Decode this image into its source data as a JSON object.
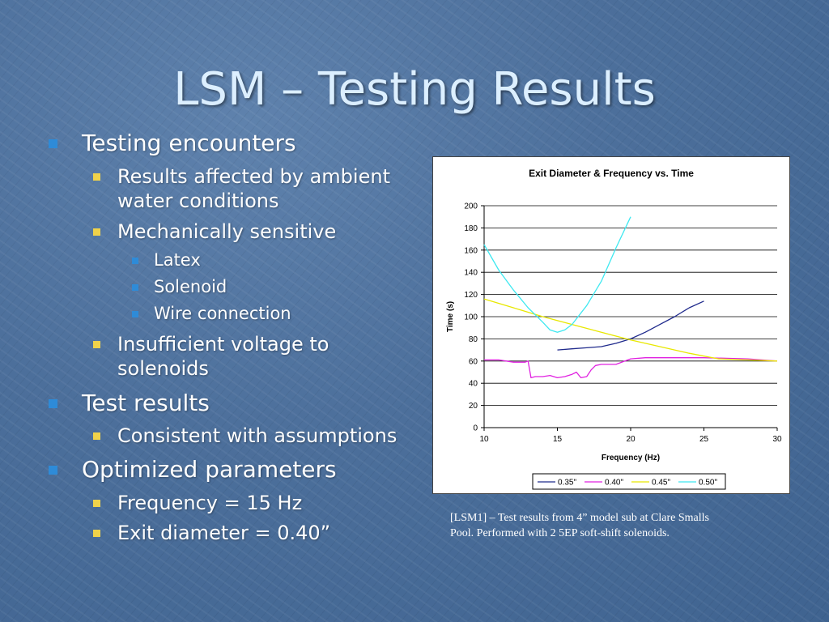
{
  "slide": {
    "title": "LSM – Testing Results",
    "bullets": [
      {
        "level": 1,
        "text": "Testing encounters"
      },
      {
        "level": 2,
        "text": "Results affected by ambient"
      },
      {
        "level": 2,
        "text": "water conditions",
        "continuation": true
      },
      {
        "level": 2,
        "text": "Mechanically sensitive"
      },
      {
        "level": 3,
        "text": "Latex"
      },
      {
        "level": 3,
        "text": "Solenoid"
      },
      {
        "level": 3,
        "text": "Wire connection"
      },
      {
        "level": 2,
        "text": "Insufficient voltage to"
      },
      {
        "level": 2,
        "text": "solenoids",
        "continuation": true
      },
      {
        "level": 1,
        "text": "Test results"
      },
      {
        "level": 2,
        "text": "Consistent with assumptions"
      },
      {
        "level": 1,
        "text": "Optimized parameters"
      },
      {
        "level": 2,
        "text": "Frequency = 15 Hz"
      },
      {
        "level": 2,
        "text": "Exit diameter = 0.40”"
      }
    ],
    "caption_line1": "[LSM1] – Test results from 4” model sub at Clare Smalls",
    "caption_line2": "Pool.  Performed with 2 5EP soft-shift solenoids.",
    "colors": {
      "level1_bullet": "#2e8bd8",
      "level2_bullet": "#f0d24a",
      "title_text": "#dcefff"
    }
  },
  "chart_data": {
    "type": "line",
    "title": "Exit Diameter & Frequency vs. Time",
    "xlabel": "Frequency (Hz)",
    "ylabel": "Time (s)",
    "xlim": [
      10,
      30
    ],
    "ylim": [
      0,
      200
    ],
    "xticks": [
      10,
      15,
      20,
      25,
      30
    ],
    "yticks": [
      0,
      20,
      40,
      60,
      80,
      100,
      120,
      140,
      160,
      180,
      200
    ],
    "grid": "horizontal",
    "legend_position": "bottom",
    "series": [
      {
        "name": "0.35\"",
        "color": "#1f2a8c",
        "x": [
          15,
          16,
          17,
          18,
          19,
          20,
          21,
          22,
          23,
          24,
          25
        ],
        "y": [
          70,
          71,
          72,
          73,
          76,
          80,
          86,
          93,
          100,
          108,
          114
        ]
      },
      {
        "name": "0.40\"",
        "color": "#e020e0",
        "x": [
          10,
          11,
          12,
          12.8,
          13,
          13.2,
          13.5,
          14,
          14.5,
          15,
          15.5,
          16,
          16.3,
          16.6,
          17,
          17.3,
          17.6,
          18,
          19,
          20,
          21,
          25,
          28,
          30
        ],
        "y": [
          61,
          61,
          59,
          59,
          60,
          45,
          46,
          46,
          47,
          45,
          46,
          48,
          50,
          45,
          46,
          52,
          56,
          57,
          57,
          62,
          63,
          63,
          62,
          60
        ]
      },
      {
        "name": "0.45\"",
        "color": "#e8e800",
        "x": [
          10,
          12,
          14,
          16,
          18,
          20,
          22,
          24,
          26,
          28,
          30
        ],
        "y": [
          116,
          108,
          100,
          93,
          86,
          79,
          73,
          67,
          62,
          61,
          60
        ]
      },
      {
        "name": "0.50\"",
        "color": "#3ee8f0",
        "x": [
          10,
          11,
          12,
          13,
          14,
          14.5,
          15,
          15.5,
          16,
          17,
          18,
          19,
          20
        ],
        "y": [
          165,
          142,
          124,
          108,
          95,
          88,
          86,
          88,
          93,
          110,
          132,
          162,
          190
        ]
      }
    ]
  }
}
